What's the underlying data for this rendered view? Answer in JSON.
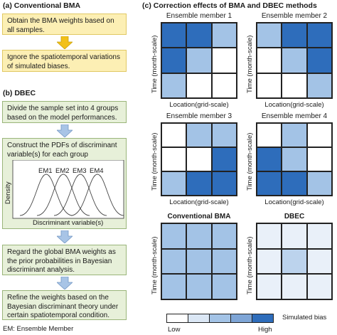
{
  "left": {
    "section_a_title": "(a) Conventional BMA",
    "section_a_steps": [
      "Obtain the BMA weights based on all samples.",
      "Ignore the spatiotemporal variations of simulated biases."
    ],
    "section_b_title": "(b) DBEC",
    "section_b_steps": [
      "Divide the sample set into 4 groups based on the model performances.",
      "Construct the PDFs of discriminant variable(s) for each group",
      "Regard the global BMA weights as the prior probabilities in Bayesian discriminant analysis.",
      "Refine the weights based on the Bayesian discriminant theory under certain spatiotemporal condition."
    ],
    "pdf_plot": {
      "ylabel": "Density",
      "xlabel": "Discriminant  variable(s)",
      "curves": [
        "EM1",
        "EM2",
        "EM3",
        "EM4"
      ]
    },
    "footnote": "EM: Ensemble Member"
  },
  "right": {
    "title": "(c) Correction effects of BMA and DBEC methods",
    "ylabel": "Time (month-scale)",
    "xlabel": "Location(grid-scale)",
    "panels": [
      {
        "title": "Ensemble member 1",
        "cells": [
          3,
          3,
          1,
          3,
          1,
          0,
          1,
          0,
          0
        ]
      },
      {
        "title": "Ensemble member 2",
        "cells": [
          1,
          3,
          3,
          0,
          1,
          3,
          0,
          0,
          1
        ]
      },
      {
        "title": "Ensemble member 3",
        "cells": [
          0,
          1,
          1,
          0,
          0,
          3,
          1,
          3,
          3
        ]
      },
      {
        "title": "Ensemble member 4",
        "cells": [
          0,
          1,
          0,
          3,
          1,
          0,
          3,
          3,
          1
        ]
      },
      {
        "title": "Conventional BMA",
        "cells": [
          1,
          1,
          1,
          1,
          1,
          1,
          1,
          1,
          1
        ]
      },
      {
        "title": "DBEC",
        "cells": [
          0,
          0,
          0,
          0,
          1,
          0,
          0,
          0,
          0
        ]
      }
    ],
    "legend": {
      "label": "Simulated bias",
      "low": "Low",
      "high": "High",
      "colors": [
        "#ffffff",
        "#dbe7f5",
        "#a3c3e6",
        "#7ea5d6",
        "#2e6dbb"
      ]
    },
    "cell_colors": {
      "0": "#ffffff",
      "1": "#a3c3e6",
      "2": "#7ea5d6",
      "3": "#2e6dbb",
      "bma": "#a3c3e6",
      "dbec_light": "#e9f0f9",
      "dbec_mid": "#bcd3ed"
    }
  }
}
